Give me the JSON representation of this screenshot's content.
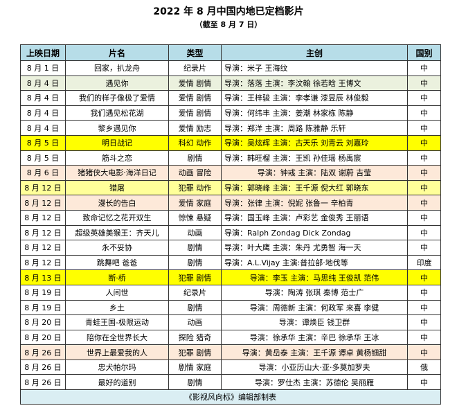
{
  "title": "2022 年 8 月中国内地已定档影片",
  "subtitle": "（截至 8 月 7 日）",
  "headers": [
    "上映日期",
    "片名",
    "类型",
    "主创",
    "国别"
  ],
  "rows": [
    {
      "date": "8 月 1 日",
      "name": "回家，扒龙舟",
      "genre": "纪录片",
      "crew": "导演：米子 王海纹",
      "country": "中",
      "bg": "",
      "align": "l"
    },
    {
      "date": "8 月 4 日",
      "name": "遇见你",
      "genre": "爱情 剧情",
      "crew": "导演：落落 主演：李汶翰 徐若晗 王博文",
      "country": "中",
      "bg": "g",
      "align": "l"
    },
    {
      "date": "8 月 4 日",
      "name": "我们的样子像极了爱情",
      "genre": "爱情 剧情",
      "crew": "导演：王梓骏 主演：李孝谦 漆昱辰 林俊毅",
      "country": "中",
      "bg": "",
      "align": "l"
    },
    {
      "date": "8 月 4 日",
      "name": "我们遇见松花湖",
      "genre": "爱情 剧情",
      "crew": "导演：何纬丰 主演：姜潮 林家栋 陈静",
      "country": "中",
      "bg": "",
      "align": "l"
    },
    {
      "date": "8 月 4 日",
      "name": "黎乡遇见你",
      "genre": "爱情 励志",
      "crew": "导演：郑洋 主演：周路 陈雅静 乐轩",
      "country": "中",
      "bg": "",
      "align": "l"
    },
    {
      "date": "8 月 5 日",
      "name": "明日战记",
      "genre": "科幻 动作",
      "crew": "导演：吴炫辉 主演：古天乐 刘青云 刘嘉玲",
      "country": "中",
      "bg": "y",
      "align": "l"
    },
    {
      "date": "8 月 5 日",
      "name": "筋斗之恋",
      "genre": "剧情",
      "crew": "导演：韩旺榴 主演：王凯 孙佳瑶 杨禹宸",
      "country": "中",
      "bg": "",
      "align": "l"
    },
    {
      "date": "8 月 6 日",
      "name": "猪猪侠大电影·海洋日记",
      "genre": "动画 冒险",
      "crew": "导演：钟彧 主演：陆双 谢蔚 吉莹",
      "country": "中",
      "bg": "p",
      "align": "c"
    },
    {
      "date": "8 月 12 日",
      "name": "猎屠",
      "genre": "犯罪 动作",
      "crew": "导演：郭晓峰 主演：王千源 倪大红 郭晓东",
      "country": "中",
      "bg": "ly",
      "align": "l"
    },
    {
      "date": "8 月 12 日",
      "name": "漫长的告白",
      "genre": "爱情 家庭",
      "crew": "导演：张律 主演：倪妮 张鲁一 辛柏青",
      "country": "中",
      "bg": "p",
      "align": "l"
    },
    {
      "date": "8 月 12 日",
      "name": "致命记忆之花开双生",
      "genre": "惊悚 悬疑",
      "crew": "导演：国玉峰 主演：卢彩艺 金俊秀 王丽语",
      "country": "中",
      "bg": "",
      "align": "l"
    },
    {
      "date": "8 月 12 日",
      "name": "超级英雄美猴王：齐天儿",
      "genre": "动画",
      "crew": "导演：Ralph Zondag Dick Zondag",
      "country": "中",
      "bg": "",
      "align": "l"
    },
    {
      "date": "8 月 12 日",
      "name": "永不妥协",
      "genre": "剧情",
      "crew": "导演：叶大鹰 主演：朱丹 尤勇智 海一天",
      "country": "中",
      "bg": "",
      "align": "l"
    },
    {
      "date": "8 月 12 日",
      "name": "跳舞吧 爸爸",
      "genre": "剧情",
      "crew": "导演：A.L.Vijay 主演:普拉部·地伐等",
      "country": "印度",
      "bg": "",
      "align": "l"
    },
    {
      "date": "8 月 13 日",
      "name": "断·桥",
      "genre": "犯罪 剧情",
      "crew": "导演：李玉 主演：马思纯 王俊凯 范伟",
      "country": "中",
      "bg": "y",
      "align": "c"
    },
    {
      "date": "8 月 19 日",
      "name": "人间世",
      "genre": "纪录片",
      "crew": "导演：陶涛 张琪 秦博 范士广",
      "country": "中",
      "bg": "",
      "align": "c"
    },
    {
      "date": "8 月 19 日",
      "name": "乡土",
      "genre": "剧情",
      "crew": "导演：周德新 主演：何政军 来喜 李健",
      "country": "中",
      "bg": "",
      "align": "c"
    },
    {
      "date": "8 月 20 日",
      "name": "青蛙王国-极限运动",
      "genre": "动画",
      "crew": "导演：谭焕臣 钱卫群",
      "country": "中",
      "bg": "",
      "align": "c"
    },
    {
      "date": "8 月 20 日",
      "name": "陪你在全世界长大",
      "genre": "探险 猎奇",
      "crew": "导演：徐承华 主演：辛巴 徐承华 王冰",
      "country": "中",
      "bg": "",
      "align": "c"
    },
    {
      "date": "8 月 26 日",
      "name": "世界上最爱我的人",
      "genre": "犯罪 剧情",
      "crew": "导演：黄岳泰 主演：王千源 谭卓 黄杨钿甜",
      "country": "中",
      "bg": "p",
      "align": "c"
    },
    {
      "date": "8 月 26 日",
      "name": "忠犬帕尔玛",
      "genre": "剧情 家庭",
      "crew": "导演：小亚历山大·亚·多莫加罗夫",
      "country": "俄",
      "bg": "",
      "align": "c"
    },
    {
      "date": "8 月 26 日",
      "name": "最好的道别",
      "genre": "剧情",
      "crew": "导演：罗仕杰 主演：苏德伦 吴丽雁",
      "country": "中",
      "bg": "",
      "align": "c"
    }
  ],
  "footer": "《影视风向标》编辑部制表"
}
